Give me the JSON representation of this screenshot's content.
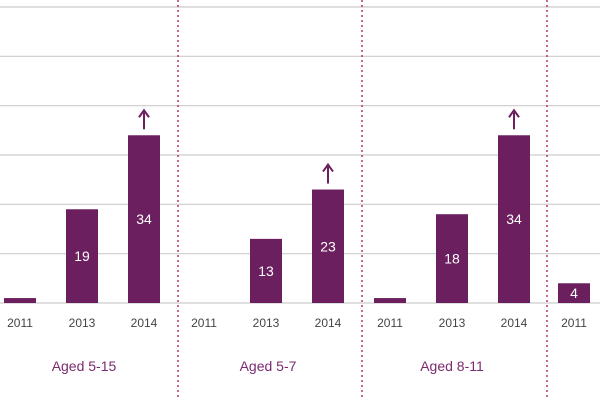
{
  "chart_data": {
    "type": "bar",
    "title": "",
    "xlabel": "",
    "ylabel": "",
    "ylim": [
      0,
      60
    ],
    "grid": true,
    "groups": [
      {
        "label": "Aged 5-15",
        "categories": [
          "2011",
          "2013",
          "2014"
        ],
        "values": [
          1,
          19,
          34
        ],
        "value_labels": [
          "",
          "19",
          "34"
        ],
        "increase_arrow": [
          false,
          false,
          true
        ]
      },
      {
        "label": "Aged 5-7",
        "categories": [
          "2011",
          "2013",
          "2014"
        ],
        "values": [
          0,
          13,
          23
        ],
        "value_labels": [
          "",
          "13",
          "23"
        ],
        "increase_arrow": [
          false,
          false,
          true
        ]
      },
      {
        "label": "Aged 8-11",
        "categories": [
          "2011",
          "2013",
          "2014"
        ],
        "values": [
          1,
          18,
          34
        ],
        "value_labels": [
          "",
          "18",
          "34"
        ],
        "increase_arrow": [
          false,
          false,
          true
        ]
      },
      {
        "label": "",
        "categories": [
          "2011"
        ],
        "values": [
          4
        ],
        "value_labels": [
          "4"
        ],
        "increase_arrow": [
          false
        ]
      }
    ],
    "colors": {
      "bar": "#6b1f5e",
      "grid": "#cccccc",
      "separator": "#b5336f",
      "tick_text": "#444444",
      "group_text": "#7a2a6e"
    }
  }
}
